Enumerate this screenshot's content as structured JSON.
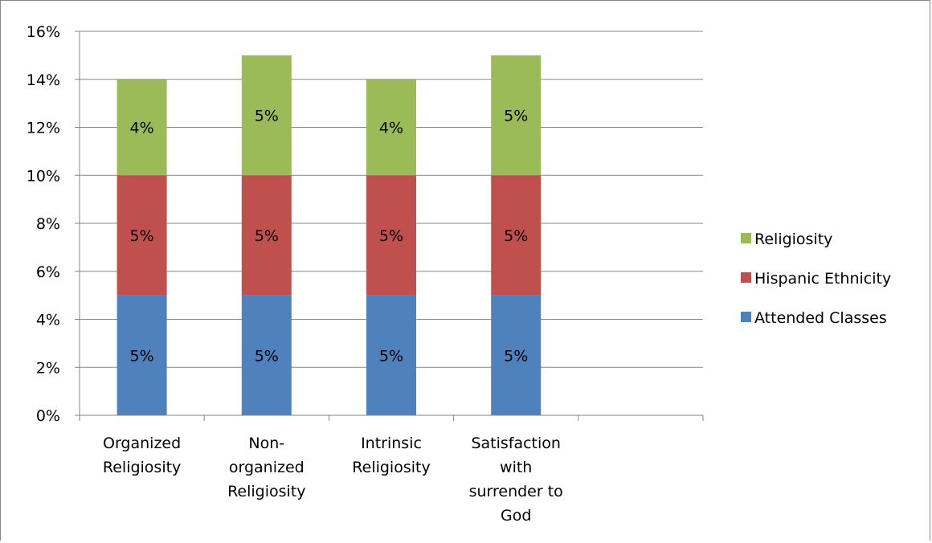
{
  "chart_data": {
    "type": "bar",
    "stacked": true,
    "title": "",
    "xlabel": "",
    "ylabel": "",
    "categories": [
      [
        "Organized",
        "Religiosity"
      ],
      [
        "Non-",
        "organized",
        "Religiosity"
      ],
      [
        "Intrinsic",
        "Religiosity"
      ],
      [
        "Satisfaction",
        "with",
        "surrender to",
        "God"
      ],
      [
        ""
      ]
    ],
    "series": [
      {
        "name": "Attended Classes",
        "color": "#4f81bd",
        "values": [
          5,
          5,
          5,
          5,
          null
        ],
        "labels": [
          "5%",
          "5%",
          "5%",
          "5%",
          ""
        ]
      },
      {
        "name": "Hispanic Ethnicity",
        "color": "#c0504d",
        "values": [
          5,
          5,
          5,
          5,
          null
        ],
        "labels": [
          "5%",
          "5%",
          "5%",
          "5%",
          ""
        ]
      },
      {
        "name": "Religiosity",
        "color": "#9bbb59",
        "values": [
          4,
          5,
          4,
          5,
          null
        ],
        "labels": [
          "4%",
          "5%",
          "4%",
          "5%",
          ""
        ]
      }
    ],
    "ylim": [
      0,
      16
    ],
    "yticks": [
      0,
      2,
      4,
      6,
      8,
      10,
      12,
      14,
      16
    ],
    "ytick_labels": [
      "0%",
      "2%",
      "4%",
      "6%",
      "8%",
      "10%",
      "12%",
      "14%",
      "16%"
    ],
    "grid": true,
    "legend_position": "right",
    "legend_order": [
      "Religiosity",
      "Hispanic Ethnicity",
      "Attended Classes"
    ]
  }
}
